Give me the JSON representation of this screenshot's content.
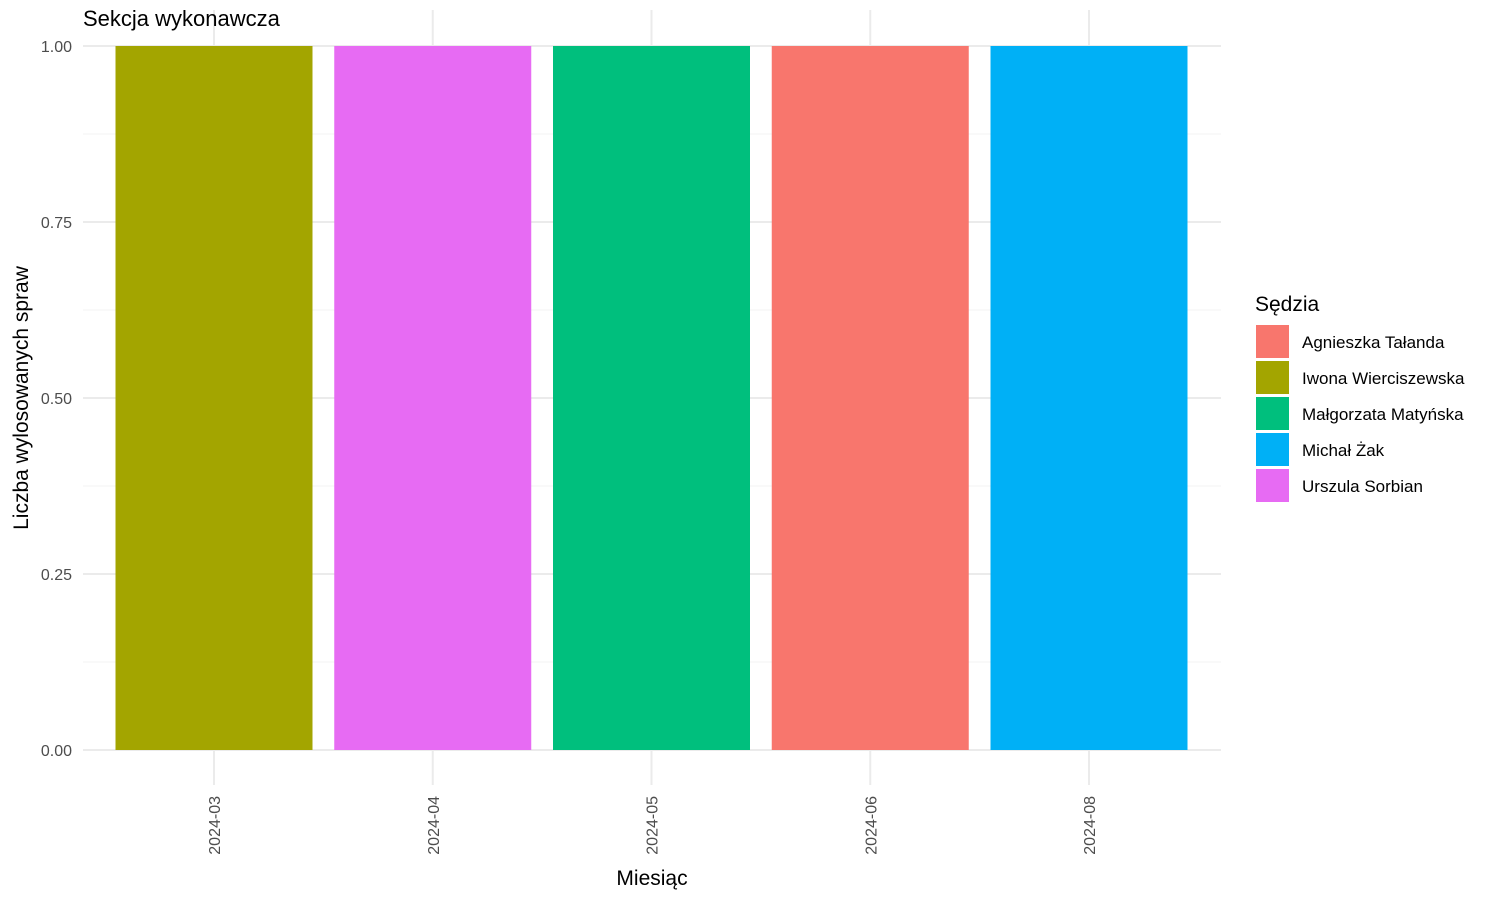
{
  "chart_data": {
    "type": "bar",
    "title": "Sekcja wykonawcza",
    "xlabel": "Miesiąc",
    "ylabel": "Liczba wylosowanych spraw",
    "categories": [
      "2024-03",
      "2024-04",
      "2024-05",
      "2024-06",
      "2024-08"
    ],
    "values": [
      1,
      1,
      1,
      1,
      1
    ],
    "bar_series": [
      "Iwona Wierciszewska",
      "Urszula Sorbian",
      "Małgorzata Matyńska",
      "Agnieszka Tałanda",
      "Michał Żak"
    ],
    "ylim": [
      0,
      1
    ],
    "yticks": [
      0,
      0.25,
      0.5,
      0.75,
      1
    ],
    "ytick_labels": [
      "0.00",
      "0.25",
      "0.50",
      "0.75",
      "1.00"
    ],
    "grid": true,
    "legend": {
      "title": "Sędzia",
      "placement": "right",
      "entries": [
        {
          "name": "Agnieszka Tałanda",
          "color": "#F8766D"
        },
        {
          "name": "Iwona Wierciszewska",
          "color": "#A3A500"
        },
        {
          "name": "Małgorzata Matyńska",
          "color": "#00BF7D"
        },
        {
          "name": "Michał Żak",
          "color": "#00B0F6"
        },
        {
          "name": "Urszula Sorbian",
          "color": "#E76BF3"
        }
      ]
    }
  }
}
